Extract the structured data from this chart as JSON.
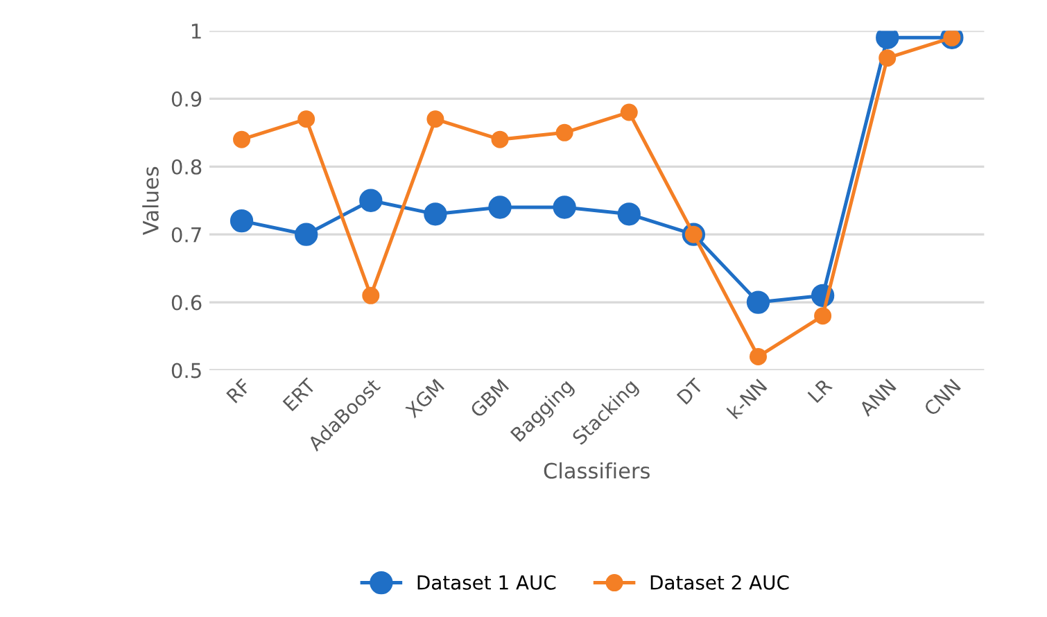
{
  "chart_data": {
    "type": "line",
    "xlabel": "Classifiers",
    "ylabel": "Values",
    "categories": [
      "RF",
      "ERT",
      "AdaBoost",
      "XGM",
      "GBM",
      "Bagging",
      "Stacking",
      "DT",
      "k-NN",
      "LR",
      "ANN",
      "CNN"
    ],
    "series": [
      {
        "name": "Dataset 1 AUC",
        "color": "#1f6fc6",
        "values": [
          0.72,
          0.7,
          0.75,
          0.73,
          0.74,
          0.74,
          0.73,
          0.7,
          0.6,
          0.61,
          0.99,
          0.99
        ]
      },
      {
        "name": "Dataset 2 AUC",
        "color": "#f47f25",
        "values": [
          0.84,
          0.87,
          0.61,
          0.87,
          0.84,
          0.85,
          0.88,
          0.7,
          0.52,
          0.58,
          0.96,
          0.99
        ]
      }
    ],
    "ylim": [
      0.5,
      1
    ],
    "yticks": [
      0.5,
      0.6,
      0.7,
      0.8,
      0.9,
      1
    ],
    "grid": "y",
    "legend": "bottom",
    "marker": "circle",
    "line_style": "solid"
  }
}
